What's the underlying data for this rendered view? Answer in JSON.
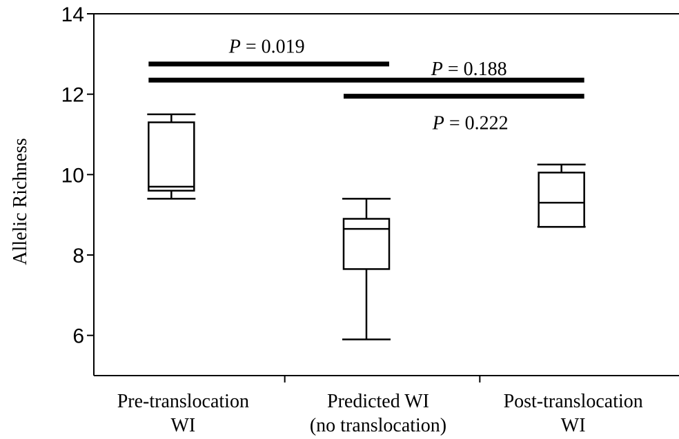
{
  "chart_data": {
    "type": "box",
    "title": "",
    "xlabel": "",
    "ylabel": "Allelic Richness",
    "ylim": [
      5,
      14
    ],
    "yticks": [
      6,
      8,
      10,
      12,
      14
    ],
    "grid": false,
    "categories": [
      [
        "Pre-translocation",
        "WI"
      ],
      [
        "Predicted WI",
        "(no translocation)"
      ],
      [
        "Post-translocation",
        "WI"
      ]
    ],
    "boxes": [
      {
        "whisker_low": 9.4,
        "q1": 9.6,
        "median": 9.7,
        "q3": 11.3,
        "whisker_high": 11.5
      },
      {
        "whisker_low": 5.9,
        "q1": 7.65,
        "median": 8.65,
        "q3": 8.9,
        "whisker_high": 9.4
      },
      {
        "whisker_low": 8.7,
        "q1": 8.7,
        "median": 9.3,
        "q3": 10.05,
        "whisker_high": 10.25
      }
    ],
    "comparisons": [
      {
        "from": 0,
        "to": 1,
        "y": 12.75,
        "p_symbol": "P",
        "p_text": " = 0.019",
        "label_y": 13.2
      },
      {
        "from": 0,
        "to": 2,
        "y": 12.35,
        "p_symbol": "P",
        "p_text": " = 0.188",
        "label_y": 12.65
      },
      {
        "from": 1,
        "to": 2,
        "y": 11.95,
        "p_symbol": "P",
        "p_text": " = 0.222",
        "label_y": 11.3
      }
    ]
  }
}
